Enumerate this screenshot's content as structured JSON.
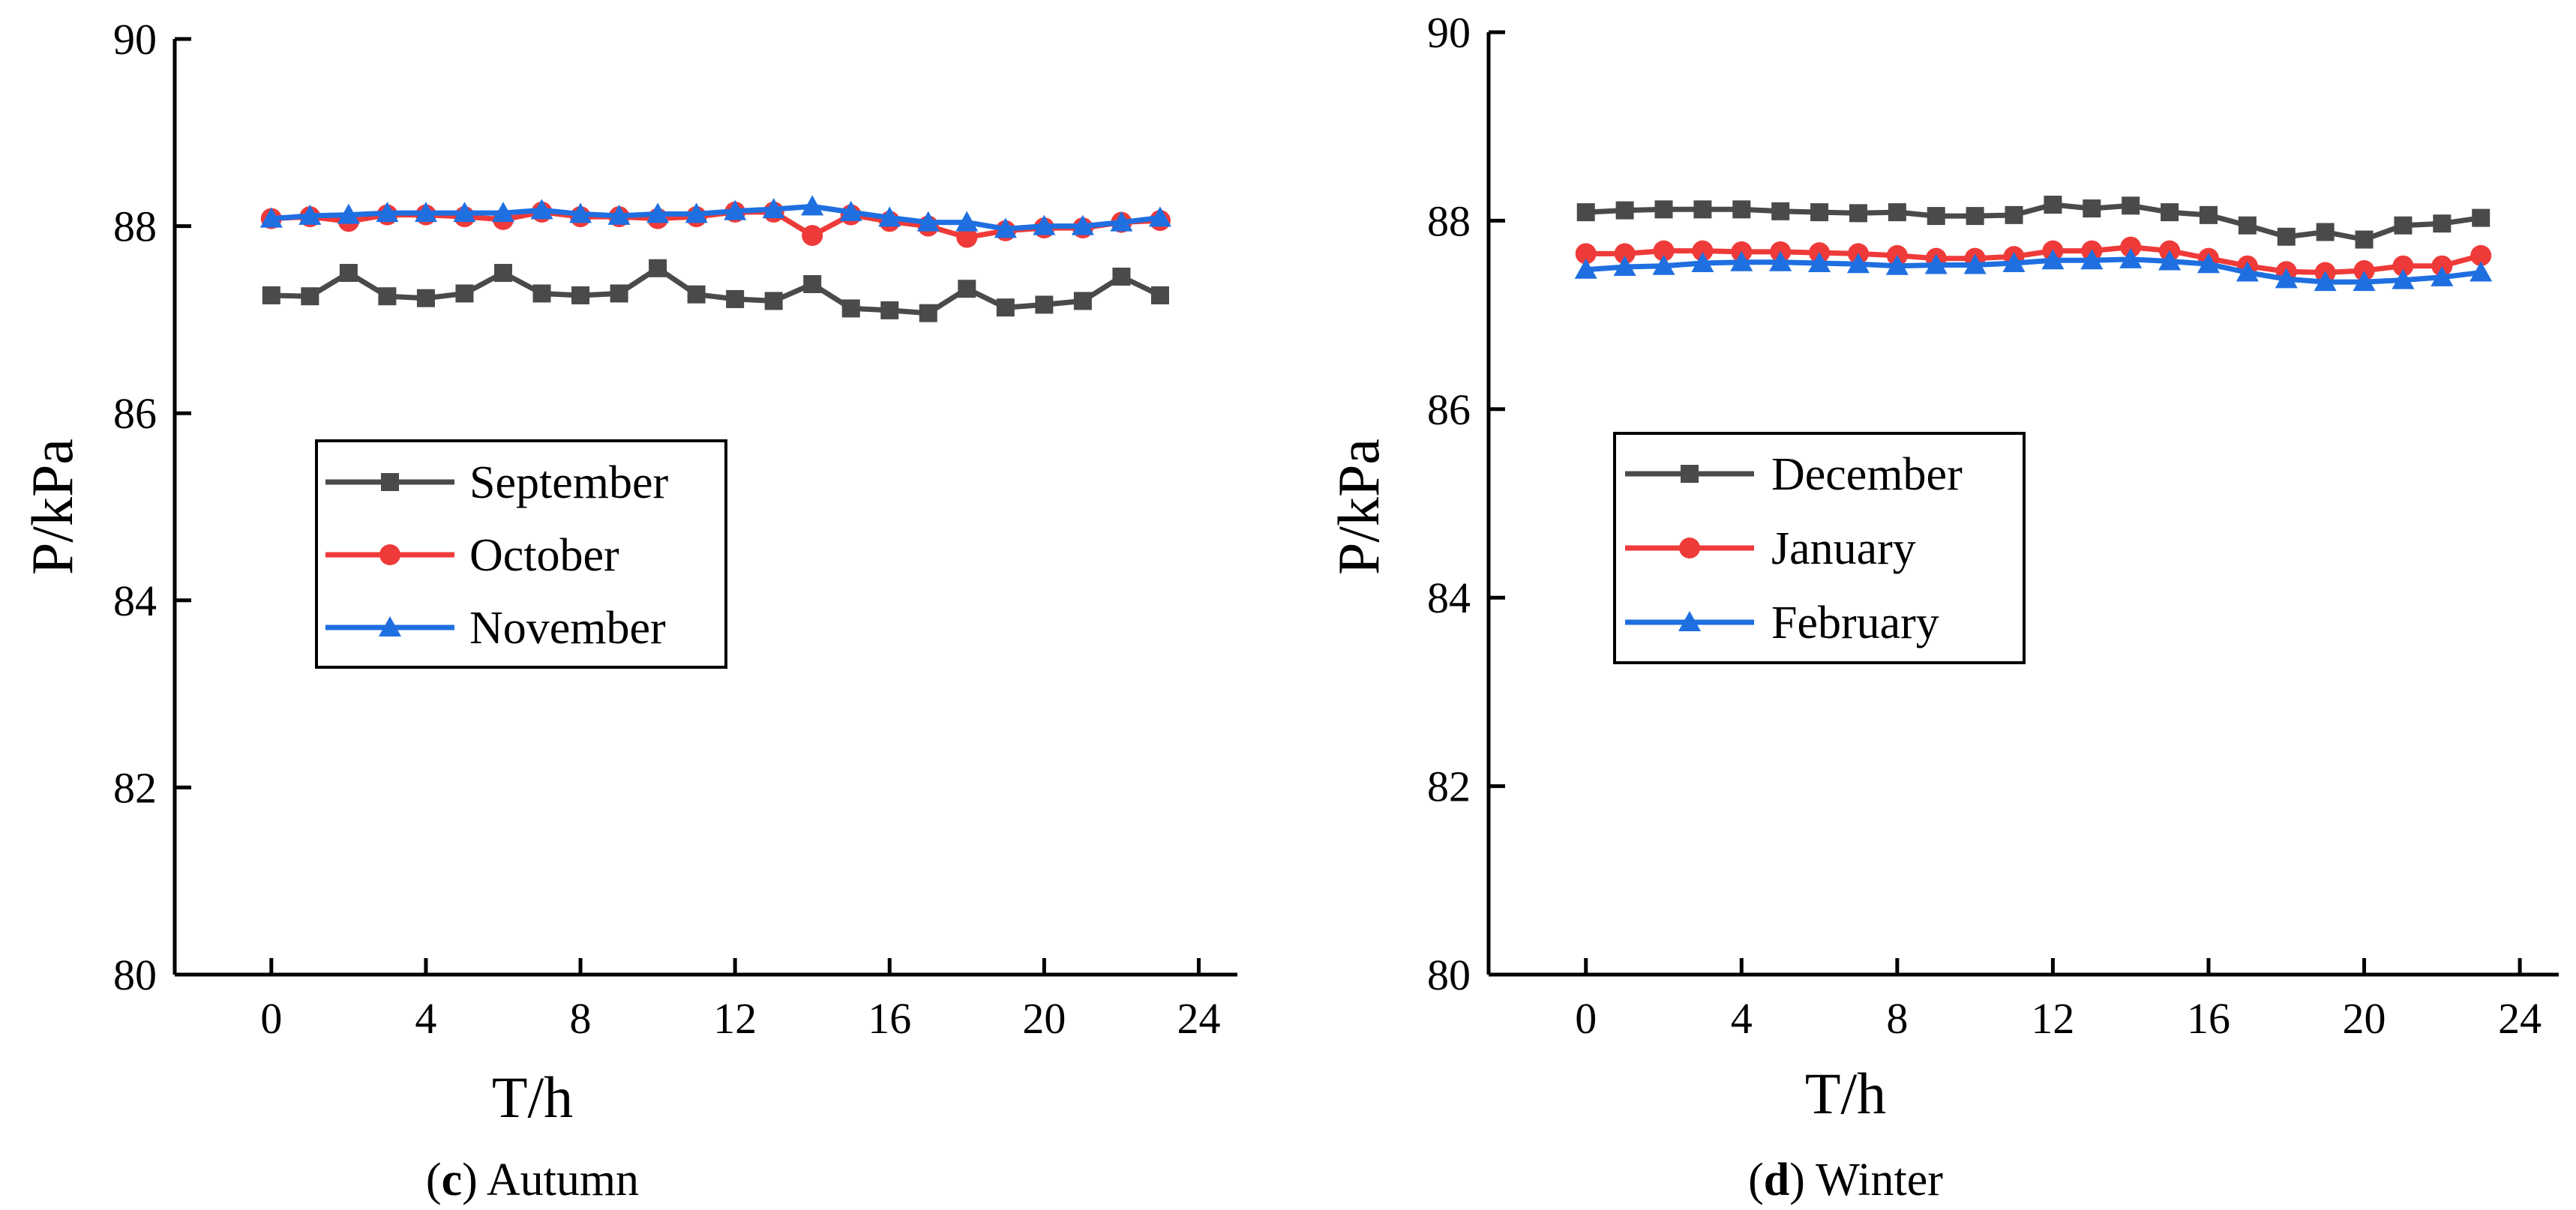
{
  "chart_data": [
    {
      "id": "c",
      "type": "line",
      "caption": {
        "letter": "c",
        "open": "(",
        "rest": ") Autumn"
      },
      "xlabel": "T/h",
      "ylabel": "P/kPa",
      "xlim": [
        -2.5,
        25
      ],
      "ylim": [
        80,
        90
      ],
      "xticks": [
        0,
        4,
        8,
        12,
        16,
        20,
        24
      ],
      "yticks": [
        80,
        82,
        84,
        86,
        88,
        90
      ],
      "legend_position": "center-left",
      "x": [
        0,
        1,
        2,
        3,
        4,
        5,
        6,
        7,
        8,
        9,
        10,
        11,
        12,
        13,
        14,
        15,
        16,
        17,
        18,
        19,
        20,
        21,
        22,
        23
      ],
      "series": [
        {
          "name": "September",
          "color": "#4a4a4a",
          "marker": "square",
          "values": [
            87.26,
            87.25,
            87.5,
            87.25,
            87.23,
            87.28,
            87.5,
            87.28,
            87.26,
            87.28,
            87.55,
            87.27,
            87.22,
            87.2,
            87.38,
            87.12,
            87.1,
            87.07,
            87.33,
            87.13,
            87.16,
            87.2,
            87.46,
            87.26
          ]
        },
        {
          "name": "October",
          "color": "#ef3a3a",
          "marker": "circle",
          "values": [
            88.08,
            88.1,
            88.05,
            88.12,
            88.12,
            88.1,
            88.07,
            88.15,
            88.1,
            88.1,
            88.08,
            88.1,
            88.15,
            88.15,
            87.9,
            88.12,
            88.05,
            88.0,
            87.88,
            87.95,
            87.98,
            87.98,
            88.04,
            88.06
          ]
        },
        {
          "name": "November",
          "color": "#1f6fe0",
          "marker": "triangle",
          "values": [
            88.08,
            88.11,
            88.12,
            88.14,
            88.14,
            88.14,
            88.14,
            88.17,
            88.13,
            88.11,
            88.13,
            88.13,
            88.16,
            88.18,
            88.21,
            88.15,
            88.09,
            88.04,
            88.04,
            87.97,
            88.0,
            88.0,
            88.04,
            88.09
          ]
        }
      ]
    },
    {
      "id": "d",
      "type": "line",
      "caption": {
        "letter": "d",
        "open": "(",
        "rest": ") Winter"
      },
      "xlabel": "T/h",
      "ylabel": "P/kPa",
      "xlim": [
        -2.5,
        25
      ],
      "ylim": [
        80,
        90
      ],
      "xticks": [
        0,
        4,
        8,
        12,
        16,
        20,
        24
      ],
      "yticks": [
        80,
        82,
        84,
        86,
        88,
        90
      ],
      "legend_position": "center-left",
      "x": [
        0,
        1,
        2,
        3,
        4,
        5,
        6,
        7,
        8,
        9,
        10,
        11,
        12,
        13,
        14,
        15,
        16,
        17,
        18,
        19,
        20,
        21,
        22,
        23
      ],
      "series": [
        {
          "name": "December",
          "color": "#4a4a4a",
          "marker": "square",
          "values": [
            88.09,
            88.11,
            88.12,
            88.12,
            88.12,
            88.1,
            88.09,
            88.08,
            88.09,
            88.05,
            88.05,
            88.06,
            88.17,
            88.13,
            88.16,
            88.09,
            88.06,
            87.95,
            87.83,
            87.88,
            87.8,
            87.95,
            87.97,
            88.03
          ]
        },
        {
          "name": "January",
          "color": "#ef3a3a",
          "marker": "circle",
          "values": [
            87.65,
            87.65,
            87.68,
            87.68,
            87.67,
            87.67,
            87.66,
            87.65,
            87.63,
            87.6,
            87.6,
            87.62,
            87.68,
            87.68,
            87.72,
            87.68,
            87.6,
            87.52,
            87.46,
            87.45,
            87.47,
            87.52,
            87.52,
            87.63
          ]
        },
        {
          "name": "February",
          "color": "#1f6fe0",
          "marker": "triangle",
          "values": [
            87.48,
            87.51,
            87.52,
            87.55,
            87.56,
            87.56,
            87.55,
            87.54,
            87.52,
            87.53,
            87.53,
            87.55,
            87.58,
            87.58,
            87.59,
            87.57,
            87.54,
            87.45,
            87.38,
            87.35,
            87.35,
            87.37,
            87.4,
            87.45
          ]
        }
      ]
    }
  ]
}
